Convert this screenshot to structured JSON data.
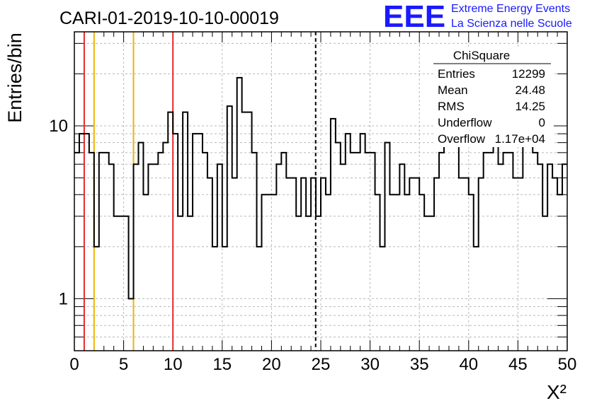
{
  "title": "CARI-01-2019-10-10-00019",
  "logo": {
    "mark": "EEE",
    "line1": "Extreme Energy Events",
    "line2": "La Scienza nelle Scuole",
    "color": "#1a1aff"
  },
  "stats": {
    "name": "ChiSquare",
    "rows": [
      {
        "label": "Entries",
        "value": "12299"
      },
      {
        "label": "Mean",
        "value": "24.48"
      },
      {
        "label": "RMS",
        "value": "14.25"
      },
      {
        "label": "Underflow",
        "value": "0"
      },
      {
        "label": "Overflow",
        "value": "1.17e+04"
      }
    ]
  },
  "chart_data": {
    "type": "bar",
    "histogram": "step",
    "ylabel": "Entries/bin",
    "xlabel": "X²",
    "xlim": [
      0,
      50
    ],
    "ylim": [
      0.5,
      35
    ],
    "y_scale": "log",
    "grid": true,
    "bin_width": 0.5,
    "x_ticks": [
      0,
      5,
      10,
      15,
      20,
      25,
      30,
      35,
      40,
      45,
      50
    ],
    "y_ticks": [
      {
        "value": 1,
        "label": "1"
      },
      {
        "value": 10,
        "label": "10"
      }
    ],
    "values": [
      7,
      9,
      9,
      7,
      2,
      7,
      7,
      6,
      3,
      3,
      3,
      1,
      6,
      8,
      4,
      6,
      6,
      7,
      8,
      12,
      9,
      3,
      12,
      3,
      9,
      9,
      7,
      5,
      2,
      6,
      2,
      13,
      5,
      19,
      12,
      12,
      7,
      2,
      4,
      4,
      4,
      6,
      7,
      5,
      5,
      3,
      5,
      3,
      5,
      3,
      5,
      4,
      11,
      8,
      6,
      9,
      7,
      7,
      9,
      7,
      7,
      4,
      2,
      8,
      4,
      4,
      6,
      4,
      5,
      5,
      4,
      3,
      3,
      5,
      7,
      9,
      9,
      8,
      5,
      5,
      4,
      2,
      5,
      7,
      7,
      11,
      6,
      7,
      7,
      5,
      5,
      9,
      8,
      7,
      6,
      3,
      6,
      5,
      4,
      6
    ],
    "vertical_lines": [
      {
        "x": 1,
        "color": "#e8282a",
        "style": "solid"
      },
      {
        "x": 2,
        "color": "#f0b400",
        "style": "solid"
      },
      {
        "x": 6,
        "color": "#f0b400",
        "style": "solid"
      },
      {
        "x": 10,
        "color": "#e8282a",
        "style": "solid"
      },
      {
        "x": 24.48,
        "color": "#000000",
        "style": "dashed"
      }
    ]
  }
}
